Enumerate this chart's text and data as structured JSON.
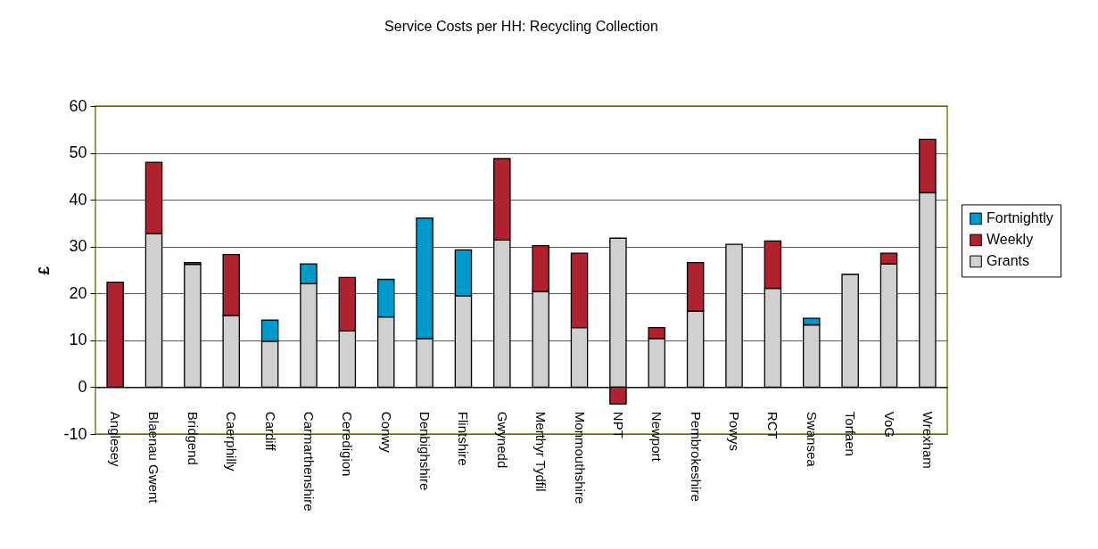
{
  "chart_data": {
    "type": "bar",
    "title": "Service Costs per HH: Recycling Collection",
    "ylabel": "£",
    "categories": [
      "Anglesey",
      "Blaenau Gwent",
      "Bridgend",
      "Caerphilly",
      "Cardiff",
      "Carmarthenshire",
      "Ceredigion",
      "Conwy",
      "Denbighshire",
      "Flintshire",
      "Gwynedd",
      "Merthyr Tydfil",
      "Monmouthshire",
      "NPT",
      "Newport",
      "Pembrokeshire",
      "Powys",
      "RCT",
      "Swansea",
      "Torfaen",
      "VoG",
      "Wrexham"
    ],
    "stacked": true,
    "series": [
      {
        "name": "Grants",
        "color": "#d0d0d0",
        "values": [
          null,
          32.8,
          26.2,
          15.3,
          9.8,
          22.1,
          12.0,
          15.0,
          10.4,
          19.5,
          31.4,
          20.4,
          12.7,
          31.8,
          10.4,
          16.2,
          30.5,
          21.1,
          13.3,
          24.1,
          26.3,
          41.5
        ]
      },
      {
        "name": "Weekly",
        "color": "#b0232e",
        "values": [
          22.4,
          15.2,
          0.4,
          13.0,
          null,
          null,
          11.4,
          null,
          null,
          null,
          17.4,
          9.8,
          15.9,
          -3.6,
          2.3,
          10.4,
          null,
          10.1,
          null,
          null,
          2.3,
          11.4
        ]
      },
      {
        "name": "Fortnightly",
        "color": "#0099cc",
        "values": [
          null,
          null,
          null,
          null,
          4.5,
          4.2,
          null,
          8.0,
          25.7,
          9.8,
          null,
          null,
          null,
          null,
          null,
          null,
          null,
          null,
          1.4,
          null,
          null,
          null
        ]
      }
    ],
    "ylim": [
      -10,
      60
    ],
    "yticks": [
      -10,
      0,
      10,
      20,
      30,
      40,
      50,
      60
    ],
    "grid": "y",
    "legend": "right"
  }
}
